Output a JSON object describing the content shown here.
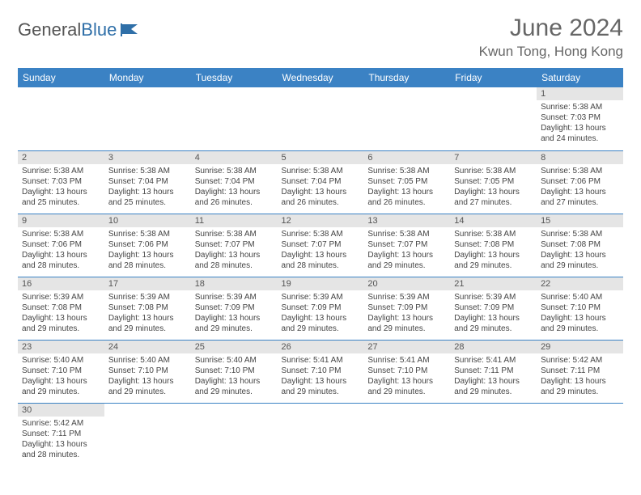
{
  "brand": {
    "part1": "General",
    "part2": "Blue"
  },
  "title": "June 2024",
  "location": "Kwun Tong, Hong Kong",
  "colors": {
    "header_bg": "#3b82c4",
    "header_text": "#ffffff",
    "daynum_bg": "#e5e5e5",
    "row_border": "#3b82c4",
    "title_color": "#666666"
  },
  "day_headers": [
    "Sunday",
    "Monday",
    "Tuesday",
    "Wednesday",
    "Thursday",
    "Friday",
    "Saturday"
  ],
  "weeks": [
    [
      null,
      null,
      null,
      null,
      null,
      null,
      {
        "n": "1",
        "sr": "Sunrise: 5:38 AM",
        "ss": "Sunset: 7:03 PM",
        "dl": "Daylight: 13 hours and 24 minutes."
      }
    ],
    [
      {
        "n": "2",
        "sr": "Sunrise: 5:38 AM",
        "ss": "Sunset: 7:03 PM",
        "dl": "Daylight: 13 hours and 25 minutes."
      },
      {
        "n": "3",
        "sr": "Sunrise: 5:38 AM",
        "ss": "Sunset: 7:04 PM",
        "dl": "Daylight: 13 hours and 25 minutes."
      },
      {
        "n": "4",
        "sr": "Sunrise: 5:38 AM",
        "ss": "Sunset: 7:04 PM",
        "dl": "Daylight: 13 hours and 26 minutes."
      },
      {
        "n": "5",
        "sr": "Sunrise: 5:38 AM",
        "ss": "Sunset: 7:04 PM",
        "dl": "Daylight: 13 hours and 26 minutes."
      },
      {
        "n": "6",
        "sr": "Sunrise: 5:38 AM",
        "ss": "Sunset: 7:05 PM",
        "dl": "Daylight: 13 hours and 26 minutes."
      },
      {
        "n": "7",
        "sr": "Sunrise: 5:38 AM",
        "ss": "Sunset: 7:05 PM",
        "dl": "Daylight: 13 hours and 27 minutes."
      },
      {
        "n": "8",
        "sr": "Sunrise: 5:38 AM",
        "ss": "Sunset: 7:06 PM",
        "dl": "Daylight: 13 hours and 27 minutes."
      }
    ],
    [
      {
        "n": "9",
        "sr": "Sunrise: 5:38 AM",
        "ss": "Sunset: 7:06 PM",
        "dl": "Daylight: 13 hours and 28 minutes."
      },
      {
        "n": "10",
        "sr": "Sunrise: 5:38 AM",
        "ss": "Sunset: 7:06 PM",
        "dl": "Daylight: 13 hours and 28 minutes."
      },
      {
        "n": "11",
        "sr": "Sunrise: 5:38 AM",
        "ss": "Sunset: 7:07 PM",
        "dl": "Daylight: 13 hours and 28 minutes."
      },
      {
        "n": "12",
        "sr": "Sunrise: 5:38 AM",
        "ss": "Sunset: 7:07 PM",
        "dl": "Daylight: 13 hours and 28 minutes."
      },
      {
        "n": "13",
        "sr": "Sunrise: 5:38 AM",
        "ss": "Sunset: 7:07 PM",
        "dl": "Daylight: 13 hours and 29 minutes."
      },
      {
        "n": "14",
        "sr": "Sunrise: 5:38 AM",
        "ss": "Sunset: 7:08 PM",
        "dl": "Daylight: 13 hours and 29 minutes."
      },
      {
        "n": "15",
        "sr": "Sunrise: 5:38 AM",
        "ss": "Sunset: 7:08 PM",
        "dl": "Daylight: 13 hours and 29 minutes."
      }
    ],
    [
      {
        "n": "16",
        "sr": "Sunrise: 5:39 AM",
        "ss": "Sunset: 7:08 PM",
        "dl": "Daylight: 13 hours and 29 minutes."
      },
      {
        "n": "17",
        "sr": "Sunrise: 5:39 AM",
        "ss": "Sunset: 7:08 PM",
        "dl": "Daylight: 13 hours and 29 minutes."
      },
      {
        "n": "18",
        "sr": "Sunrise: 5:39 AM",
        "ss": "Sunset: 7:09 PM",
        "dl": "Daylight: 13 hours and 29 minutes."
      },
      {
        "n": "19",
        "sr": "Sunrise: 5:39 AM",
        "ss": "Sunset: 7:09 PM",
        "dl": "Daylight: 13 hours and 29 minutes."
      },
      {
        "n": "20",
        "sr": "Sunrise: 5:39 AM",
        "ss": "Sunset: 7:09 PM",
        "dl": "Daylight: 13 hours and 29 minutes."
      },
      {
        "n": "21",
        "sr": "Sunrise: 5:39 AM",
        "ss": "Sunset: 7:09 PM",
        "dl": "Daylight: 13 hours and 29 minutes."
      },
      {
        "n": "22",
        "sr": "Sunrise: 5:40 AM",
        "ss": "Sunset: 7:10 PM",
        "dl": "Daylight: 13 hours and 29 minutes."
      }
    ],
    [
      {
        "n": "23",
        "sr": "Sunrise: 5:40 AM",
        "ss": "Sunset: 7:10 PM",
        "dl": "Daylight: 13 hours and 29 minutes."
      },
      {
        "n": "24",
        "sr": "Sunrise: 5:40 AM",
        "ss": "Sunset: 7:10 PM",
        "dl": "Daylight: 13 hours and 29 minutes."
      },
      {
        "n": "25",
        "sr": "Sunrise: 5:40 AM",
        "ss": "Sunset: 7:10 PM",
        "dl": "Daylight: 13 hours and 29 minutes."
      },
      {
        "n": "26",
        "sr": "Sunrise: 5:41 AM",
        "ss": "Sunset: 7:10 PM",
        "dl": "Daylight: 13 hours and 29 minutes."
      },
      {
        "n": "27",
        "sr": "Sunrise: 5:41 AM",
        "ss": "Sunset: 7:10 PM",
        "dl": "Daylight: 13 hours and 29 minutes."
      },
      {
        "n": "28",
        "sr": "Sunrise: 5:41 AM",
        "ss": "Sunset: 7:11 PM",
        "dl": "Daylight: 13 hours and 29 minutes."
      },
      {
        "n": "29",
        "sr": "Sunrise: 5:42 AM",
        "ss": "Sunset: 7:11 PM",
        "dl": "Daylight: 13 hours and 29 minutes."
      }
    ],
    [
      {
        "n": "30",
        "sr": "Sunrise: 5:42 AM",
        "ss": "Sunset: 7:11 PM",
        "dl": "Daylight: 13 hours and 28 minutes."
      },
      null,
      null,
      null,
      null,
      null,
      null
    ]
  ]
}
